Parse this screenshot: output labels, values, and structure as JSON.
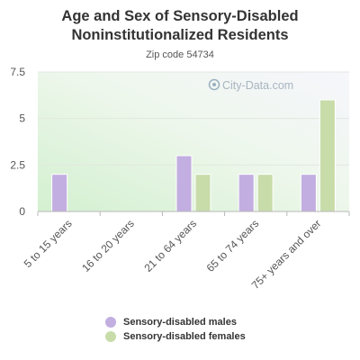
{
  "chart_data": {
    "type": "bar",
    "title": "Age and Sex of Sensory-Disabled Noninstitutionalized Residents",
    "subtitle": "Zip code 54734",
    "categories": [
      "5 to 15 years",
      "16 to 20 years",
      "21 to 64 years",
      "65 to 74 years",
      "75+ years and over"
    ],
    "series": [
      {
        "name": "Sensory-disabled males",
        "values": [
          2,
          0,
          3,
          2,
          2
        ],
        "color": "#c2aee0"
      },
      {
        "name": "Sensory-disabled females",
        "values": [
          0,
          0,
          2,
          2,
          6
        ],
        "color": "#c8dcaa"
      }
    ],
    "y_ticks": [
      "0",
      "2.5",
      "5",
      "7.5"
    ],
    "ylim": [
      0,
      7.5
    ],
    "grid": true,
    "legend_position": "bottom"
  },
  "watermark": "City-Data.com"
}
